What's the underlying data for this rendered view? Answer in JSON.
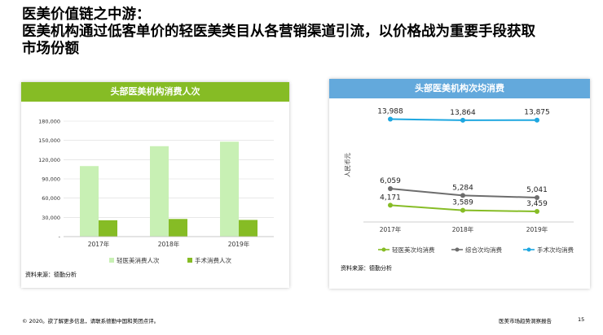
{
  "title": {
    "line1": "医美价值链之中游：",
    "line2": "医美机构通过低客单价的轻医美类目从各营销渠道引流，以价格战为重要手段获取",
    "line3": "市场份额"
  },
  "left_panel": {
    "header": "头部医美机构消费人次",
    "source": "资料来源：德勤分析"
  },
  "right_panel": {
    "header": "头部医美机构次均消费",
    "source": "资料来源：德勤分析"
  },
  "footer": {
    "left": "© 2020。欲了解更多信息，请联系德勤中国和美团点评。",
    "right": "医美市场趋势洞察报告",
    "page": "15"
  },
  "colors": {
    "light_green": "#c8f0b4",
    "dark_green": "#86bc25",
    "gray": "#6d6d6d",
    "blue": "#1ea7e0"
  },
  "chart_data": [
    {
      "type": "bar",
      "title": "头部医美机构消费人次",
      "categories": [
        "2017年",
        "2018年",
        "2019年"
      ],
      "y_ticks": [
        "-",
        "30,000",
        "60,000",
        "90,000",
        "120,000",
        "150,000",
        "180,000"
      ],
      "ylim": [
        0,
        180000
      ],
      "grid": true,
      "legend_position": "bottom",
      "series": [
        {
          "name": "轻医美消费人次",
          "color": "#c8f0b4",
          "values": [
            110000,
            141000,
            148000
          ]
        },
        {
          "name": "手术消费人次",
          "color": "#86bc25",
          "values": [
            25500,
            27500,
            26000
          ]
        }
      ]
    },
    {
      "type": "line",
      "title": "头部医美机构次均消费",
      "ylabel": "人民币元",
      "categories": [
        "2017年",
        "2018年",
        "2019年"
      ],
      "ylim": [
        3000,
        14500
      ],
      "grid": false,
      "legend_position": "bottom",
      "series": [
        {
          "name": "轻医美次均消费",
          "color": "#86bc25",
          "values": [
            4171,
            3589,
            3459
          ],
          "labels": [
            "4,171",
            "3,589",
            "3,459"
          ]
        },
        {
          "name": "综合次均消费",
          "color": "#6d6d6d",
          "values": [
            6059,
            5284,
            5041
          ],
          "labels": [
            "6,059",
            "5,284",
            "5,041"
          ]
        },
        {
          "name": "手术次均消费",
          "color": "#1ea7e0",
          "values": [
            13988,
            13864,
            13875
          ],
          "labels": [
            "13,988",
            "13,864",
            "13,875"
          ]
        }
      ]
    }
  ]
}
